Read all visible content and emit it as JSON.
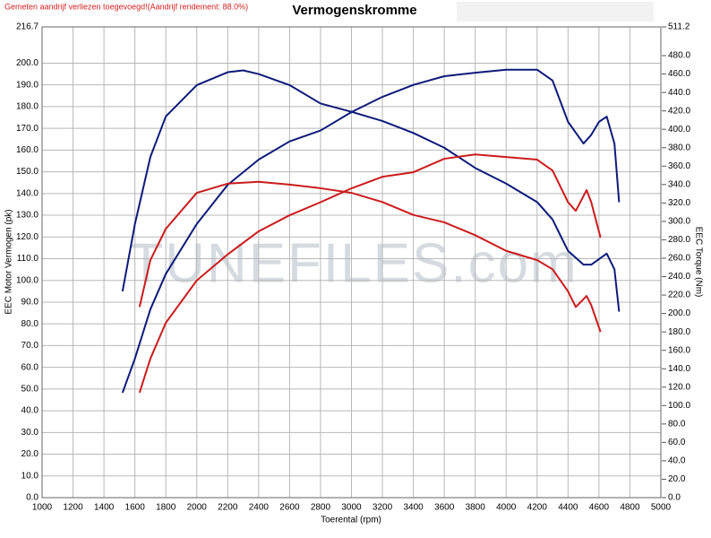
{
  "chart_data": {
    "type": "line",
    "title": "Vermogenskromme",
    "notice": "Gemeten aandrijf verliezen toegevoegd!(Aandrijf rendement: 88.0%)",
    "watermark": "TUNEFILES.com",
    "xlabel": "Toerental (rpm)",
    "ylabel": "EEC Motor Vermogen (pk)",
    "y2label": "EEC Torque (Nm)",
    "grid": true,
    "xlim": [
      1000,
      5000
    ],
    "xticks": [
      1000,
      1200,
      1400,
      1600,
      1800,
      2000,
      2200,
      2400,
      2600,
      2800,
      3000,
      3200,
      3400,
      3600,
      3800,
      4000,
      4200,
      4400,
      4600,
      4800,
      5000
    ],
    "ylim": [
      0,
      216.7
    ],
    "yticks": [
      {
        "value": 0,
        "label": "0.0"
      },
      {
        "value": 10,
        "label": "10.0"
      },
      {
        "value": 20,
        "label": "20.0"
      },
      {
        "value": 30,
        "label": "30.0"
      },
      {
        "value": 40,
        "label": "40.0"
      },
      {
        "value": 50,
        "label": "50.0"
      },
      {
        "value": 60,
        "label": "60.0"
      },
      {
        "value": 70,
        "label": "70.0"
      },
      {
        "value": 80,
        "label": "80.0"
      },
      {
        "value": 90,
        "label": "90.0"
      },
      {
        "value": 100,
        "label": "100.0"
      },
      {
        "value": 110,
        "label": "110.0"
      },
      {
        "value": 120,
        "label": "120.0"
      },
      {
        "value": 130,
        "label": "130.0"
      },
      {
        "value": 140,
        "label": "140.0"
      },
      {
        "value": 150,
        "label": "150.0"
      },
      {
        "value": 160,
        "label": "160.0"
      },
      {
        "value": 170,
        "label": "170.0"
      },
      {
        "value": 180,
        "label": "180.0"
      },
      {
        "value": 190,
        "label": "190.0"
      },
      {
        "value": 200,
        "label": "200.0"
      },
      216.7
    ],
    "y2lim": [
      0,
      511.2
    ],
    "y2ticks": [
      {
        "value": 0,
        "label": "0.0"
      },
      {
        "value": 20,
        "label": "20.0"
      },
      {
        "value": 40,
        "label": "40.0"
      },
      {
        "value": 60,
        "label": "60.0"
      },
      {
        "value": 80,
        "label": "80.0"
      },
      {
        "value": 100,
        "label": "100.0"
      },
      {
        "value": 120,
        "label": "120.0"
      },
      {
        "value": 140,
        "label": "140.0"
      },
      {
        "value": 160,
        "label": "160.0"
      },
      {
        "value": 180,
        "label": "180.0"
      },
      {
        "value": 200,
        "label": "200.0"
      },
      {
        "value": 220,
        "label": "220.0"
      },
      {
        "value": 240,
        "label": "240.0"
      },
      {
        "value": 260,
        "label": "260.0"
      },
      {
        "value": 280,
        "label": "280.0"
      },
      {
        "value": 300,
        "label": "300.0"
      },
      {
        "value": 320,
        "label": "320.0"
      },
      {
        "value": 340,
        "label": "340.0"
      },
      {
        "value": 360,
        "label": "360.0"
      },
      {
        "value": 380,
        "label": "380.0"
      },
      {
        "value": 400,
        "label": "400.0"
      },
      {
        "value": 420,
        "label": "420.0"
      },
      {
        "value": 440,
        "label": "440.0"
      },
      {
        "value": 460,
        "label": "460.0"
      },
      {
        "value": 480,
        "label": "480.0"
      },
      511.2
    ],
    "series": [
      {
        "color": "#0d1a7a",
        "axis": "y",
        "x": [
          1520,
          1600,
          1700,
          1800,
          2000,
          2200,
          2400,
          2600,
          2800,
          3000,
          3200,
          3400,
          3600,
          3800,
          4000,
          4200,
          4300,
          4400,
          4500,
          4550,
          4600,
          4650,
          4700,
          4730
        ],
        "values": [
          48.3,
          64,
          86.7,
          103,
          126,
          144,
          155.6,
          164,
          169,
          177.5,
          184.5,
          190,
          194,
          195.6,
          197,
          197,
          192,
          173,
          163,
          167,
          173,
          175.4,
          163,
          136
        ]
      },
      {
        "color": "#0d1a7a",
        "axis": "y2",
        "x": [
          1520,
          1600,
          1700,
          1800,
          2000,
          2200,
          2300,
          2400,
          2600,
          2800,
          3000,
          3200,
          3400,
          3600,
          3800,
          4000,
          4200,
          4300,
          4400,
          4500,
          4550,
          4650,
          4700,
          4730
        ],
        "values": [
          224,
          297,
          370,
          414,
          448,
          462,
          464,
          460,
          448,
          428,
          419,
          409,
          396,
          380,
          358,
          341,
          321,
          302,
          268,
          253,
          253,
          265,
          248,
          202
        ]
      },
      {
        "color": "#cc1b1b",
        "axis": "y",
        "x": [
          1630,
          1700,
          1800,
          2000,
          2200,
          2400,
          2600,
          2800,
          3000,
          3200,
          3400,
          3600,
          3800,
          4000,
          4200,
          4300,
          4400,
          4450,
          4520,
          4550,
          4610
        ],
        "values": [
          48.3,
          64,
          80.5,
          100,
          112,
          122.6,
          130,
          136,
          142.4,
          147.7,
          149.8,
          156,
          158,
          156.8,
          155.6,
          150.6,
          136,
          132,
          141.6,
          136,
          119.7
        ]
      },
      {
        "color": "#cc1b1b",
        "axis": "y2",
        "x": [
          1630,
          1700,
          1800,
          2000,
          2200,
          2400,
          2600,
          2800,
          3000,
          3200,
          3400,
          3600,
          3800,
          4000,
          4200,
          4300,
          4400,
          4450,
          4520,
          4550,
          4610
        ],
        "values": [
          207,
          258,
          292,
          331,
          341,
          343,
          340,
          336,
          331,
          321,
          307,
          299,
          285,
          268,
          258,
          248,
          224,
          207,
          219,
          209,
          180
        ]
      }
    ]
  }
}
